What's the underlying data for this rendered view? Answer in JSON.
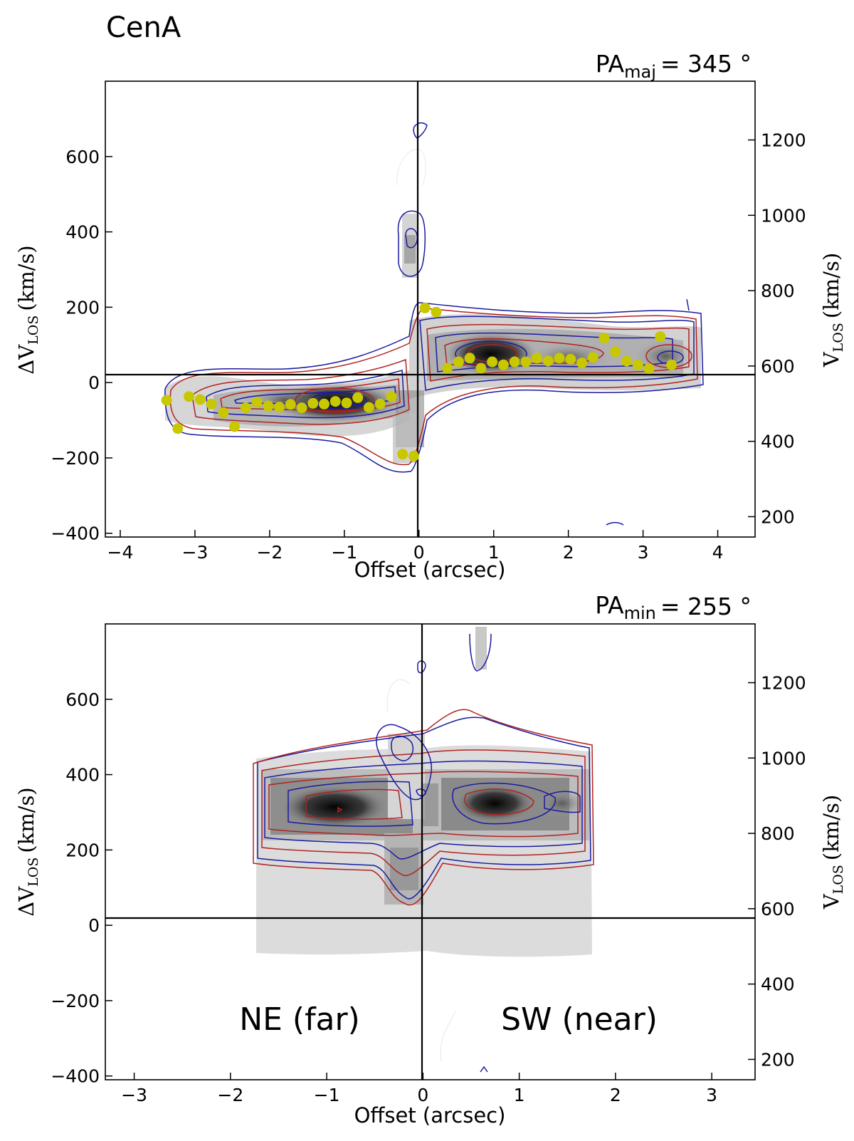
{
  "figure_title": "CenA",
  "chart_data": [
    {
      "type": "scatter",
      "panel": "major-axis position-velocity diagram",
      "pa_label": {
        "prefix": "PA",
        "subscript": "maj",
        "value": "= 345 °"
      },
      "xlabel": "Offset (arcsec)",
      "ylabel": {
        "prefix": "ΔV",
        "subscript": "LOS",
        "unit": "(km/s)"
      },
      "y2label": {
        "prefix": "V",
        "subscript": "LOS",
        "unit": "(km/s)"
      },
      "xlim": [
        -4.2,
        4.5
      ],
      "ylim": [
        -410,
        800
      ],
      "xticks": [
        -4,
        -3,
        -2,
        -1,
        0,
        1,
        2,
        3,
        4
      ],
      "xtick_labels": [
        "−4",
        "−3",
        "−2",
        "−1",
        "0",
        "1",
        "2",
        "3",
        "4"
      ],
      "yticks": [
        -400,
        -200,
        0,
        200,
        400,
        600
      ],
      "ytick_labels": [
        "−400",
        "−200",
        "0",
        "200",
        "400",
        "600"
      ],
      "y2_offset": 556,
      "y2ticks": [
        200,
        400,
        600,
        800,
        1000,
        1200
      ],
      "y2tick_labels": [
        "200",
        "400",
        "600",
        "800",
        "1000",
        "1200"
      ],
      "reference_lines": {
        "x": 0,
        "y": 0
      },
      "series": [
        {
          "marker_color": "#c8c800",
          "x": [
            -3.38,
            -3.23,
            -3.08,
            -2.93,
            -2.78,
            -2.62,
            -2.47,
            -2.32,
            -2.17,
            -2.02,
            -1.87,
            -1.72,
            -1.57,
            -1.42,
            -1.27,
            -1.12,
            -0.97,
            -0.82,
            -0.67,
            -0.52,
            -0.37,
            -0.22,
            -0.07,
            0.08,
            0.23,
            0.38,
            0.53,
            0.68,
            0.83,
            0.98,
            1.13,
            1.28,
            1.43,
            1.58,
            1.73,
            1.88,
            2.03,
            2.18,
            2.33,
            2.48,
            2.63,
            2.78,
            2.93,
            3.08,
            3.23,
            3.38
          ],
          "y": [
            -47,
            -122,
            -37,
            -45,
            -57,
            -80,
            -117,
            -67,
            -52,
            -62,
            -65,
            -58,
            -67,
            -55,
            -57,
            -50,
            -54,
            -40,
            -66,
            -57,
            -37,
            -190,
            -195,
            198,
            187,
            38,
            55,
            65,
            38,
            55,
            47,
            55,
            55,
            65,
            57,
            65,
            62,
            52,
            67,
            118,
            82,
            57,
            47,
            37,
            122,
            47
          ]
        }
      ]
    },
    {
      "type": "heatmap",
      "panel": "minor-axis position-velocity diagram",
      "pa_label": {
        "prefix": "PA",
        "subscript": "min",
        "value": "= 255 °"
      },
      "xlabel": "Offset (arcsec)",
      "ylabel": {
        "prefix": "ΔV",
        "subscript": "LOS",
        "unit": "(km/s)"
      },
      "y2label": {
        "prefix": "V",
        "subscript": "LOS",
        "unit": "(km/s)"
      },
      "xlim": [
        -3.3,
        3.45
      ],
      "ylim": [
        -410,
        800
      ],
      "xticks": [
        -3,
        -2,
        -1,
        0,
        1,
        2,
        3
      ],
      "xtick_labels": [
        "−3",
        "−2",
        "−1",
        "0",
        "1",
        "2",
        "3"
      ],
      "yticks": [
        -400,
        -200,
        0,
        200,
        400,
        600
      ],
      "ytick_labels": [
        "−400",
        "−200",
        "0",
        "200",
        "400",
        "600"
      ],
      "y2_offset": 556,
      "y2ticks": [
        200,
        400,
        600,
        800,
        1000,
        1200
      ],
      "y2tick_labels": [
        "200",
        "400",
        "600",
        "800",
        "1000",
        "1200"
      ],
      "reference_lines": {
        "x": 0,
        "y": 0
      },
      "annotations": [
        "NE (far)",
        "SW (near)"
      ]
    }
  ],
  "colors": {
    "contour_red": "#b22222",
    "contour_blue": "#1a1aa0",
    "contour_faint": "#dddddd",
    "marker": "#c8c800"
  }
}
